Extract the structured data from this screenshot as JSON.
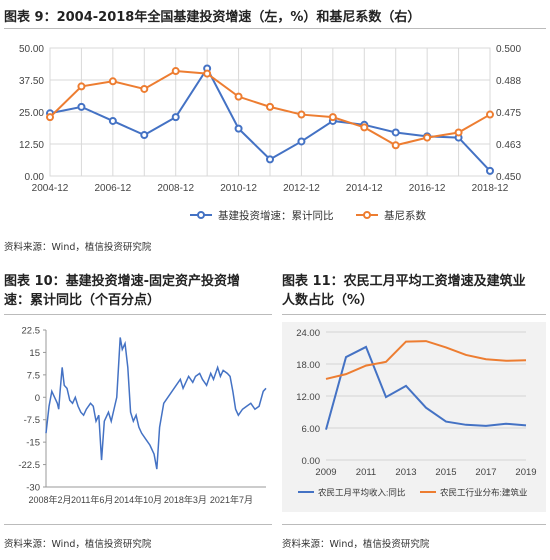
{
  "figures": {
    "fig9": {
      "title": "图表 9：2004-2018年全国基建投资增速（左，%）和基尼系数（右）",
      "source": "资料来源：Wind，植信投资研究院"
    },
    "fig10": {
      "title_line1": "图表  10：基建投资增速-固定资产投资增",
      "title_line2": "速：累计同比（个百分点）",
      "source": "资料来源：Wind，植信投资研究院"
    },
    "fig11": {
      "title_line1": "图表  11：农民工月平均工资增速及建筑业",
      "title_line2": "人数占比（%）",
      "source": "资料来源：Wind，植信投资研究院"
    }
  },
  "chart_data": [
    {
      "id": "fig9",
      "type": "line",
      "title": "",
      "xlabel": "",
      "ylabel": "",
      "x_ticks": [
        "2004-12",
        "2006-12",
        "2008-12",
        "2010-12",
        "2012-12",
        "2014-12",
        "2016-12",
        "2018-12"
      ],
      "x": [
        2004,
        2005,
        2006,
        2007,
        2008,
        2009,
        2010,
        2011,
        2012,
        2013,
        2014,
        2015,
        2016,
        2017,
        2018
      ],
      "ylim_left": [
        0,
        50
      ],
      "yticks_left": [
        "0.00",
        "12.50",
        "25.00",
        "37.50",
        "50.00"
      ],
      "ylim_right": [
        0.45,
        0.5
      ],
      "yticks_right": [
        "0.450",
        "0.463",
        "0.475",
        "0.488",
        "0.500"
      ],
      "grid": true,
      "legend_position": "bottom",
      "series": [
        {
          "name": "基建投资增速：累计同比",
          "axis": "left",
          "color": "#4472c4",
          "values": [
            24.5,
            27,
            21.5,
            16,
            23,
            42,
            18.5,
            6.5,
            13.5,
            21.5,
            20,
            17,
            15.5,
            15,
            2
          ]
        },
        {
          "name": "基尼系数",
          "axis": "right",
          "color": "#ed7d31",
          "values": [
            0.473,
            0.485,
            0.487,
            0.484,
            0.491,
            0.49,
            0.481,
            0.477,
            0.474,
            0.473,
            0.469,
            0.462,
            0.465,
            0.467,
            0.474
          ]
        }
      ]
    },
    {
      "id": "fig10",
      "type": "line",
      "title": "",
      "xlabel": "",
      "ylabel": "",
      "ylim": [
        -30,
        22.5
      ],
      "yticks": [
        "22.5",
        "15",
        "7.5",
        "0",
        "-7.5",
        "-15",
        "-22.5",
        "-30"
      ],
      "x_ticks": [
        "2008年2月",
        "2011年6月",
        "2014年10月",
        "2018年3月",
        "2021年7月"
      ],
      "x_tick_pos": [
        2008.08,
        2011.42,
        2014.75,
        2018.17,
        2021.5
      ],
      "xlim": [
        2008.08,
        2024.0
      ],
      "grid": false,
      "series": [
        {
          "name": "",
          "color": "#4472c4",
          "points": [
            [
              2008.08,
              -12
            ],
            [
              2008.3,
              -3
            ],
            [
              2008.5,
              2
            ],
            [
              2008.7,
              0
            ],
            [
              2008.9,
              -2
            ],
            [
              2009.0,
              -4
            ],
            [
              2009.1,
              2
            ],
            [
              2009.25,
              10
            ],
            [
              2009.4,
              4
            ],
            [
              2009.6,
              3
            ],
            [
              2009.8,
              -1
            ],
            [
              2010.0,
              -2
            ],
            [
              2010.2,
              0
            ],
            [
              2010.4,
              -3
            ],
            [
              2010.6,
              -5
            ],
            [
              2010.8,
              -6
            ],
            [
              2011.0,
              -4
            ],
            [
              2011.3,
              -2
            ],
            [
              2011.5,
              -3
            ],
            [
              2011.7,
              -8
            ],
            [
              2011.9,
              -6
            ],
            [
              2012.1,
              -21
            ],
            [
              2012.3,
              -8
            ],
            [
              2012.6,
              -5
            ],
            [
              2012.8,
              -8
            ],
            [
              2013.0,
              -4
            ],
            [
              2013.2,
              0
            ],
            [
              2013.45,
              20
            ],
            [
              2013.6,
              16
            ],
            [
              2013.8,
              18
            ],
            [
              2014.0,
              10
            ],
            [
              2014.2,
              -5
            ],
            [
              2014.4,
              -8
            ],
            [
              2014.6,
              -6
            ],
            [
              2014.8,
              -10
            ],
            [
              2015.0,
              -12
            ],
            [
              2015.3,
              -14
            ],
            [
              2015.6,
              -16
            ],
            [
              2015.9,
              -19
            ],
            [
              2016.1,
              -24
            ],
            [
              2016.3,
              -10
            ],
            [
              2016.6,
              -2
            ],
            [
              2016.9,
              0
            ],
            [
              2017.2,
              2
            ],
            [
              2017.5,
              4
            ],
            [
              2017.8,
              6
            ],
            [
              2018.0,
              3
            ],
            [
              2018.2,
              5
            ],
            [
              2018.4,
              7
            ],
            [
              2018.7,
              5
            ],
            [
              2018.9,
              7
            ],
            [
              2019.2,
              8
            ],
            [
              2019.4,
              6
            ],
            [
              2019.7,
              4
            ],
            [
              2020.0,
              8
            ],
            [
              2020.2,
              6
            ],
            [
              2020.5,
              10
            ],
            [
              2020.7,
              7
            ],
            [
              2020.9,
              9
            ],
            [
              2021.2,
              8
            ],
            [
              2021.4,
              7
            ],
            [
              2021.6,
              2
            ],
            [
              2021.8,
              -4
            ],
            [
              2022.0,
              -6
            ],
            [
              2022.3,
              -4
            ],
            [
              2022.6,
              -3
            ],
            [
              2022.9,
              -2
            ],
            [
              2023.2,
              -4
            ],
            [
              2023.5,
              -3
            ],
            [
              2023.8,
              2
            ],
            [
              2024.0,
              3
            ]
          ]
        }
      ]
    },
    {
      "id": "fig11",
      "type": "line",
      "title": "",
      "xlabel": "",
      "ylabel": "",
      "x": [
        2009,
        2010,
        2011,
        2012,
        2013,
        2014,
        2015,
        2016,
        2017,
        2018,
        2019
      ],
      "x_ticks": [
        "2009",
        "2011",
        "2013",
        "2015",
        "2017",
        "2019"
      ],
      "ylim": [
        0,
        24
      ],
      "yticks": [
        "0.00",
        "6.00",
        "12.00",
        "18.00",
        "24.00"
      ],
      "grid": true,
      "legend_position": "bottom",
      "series": [
        {
          "name": "农民工月平均收入:同比",
          "color": "#4472c4",
          "values": [
            5.7,
            19.3,
            21.2,
            11.8,
            13.9,
            9.8,
            7.2,
            6.6,
            6.4,
            6.8,
            6.5
          ]
        },
        {
          "name": "农民工行业分布:建筑业",
          "color": "#ed7d31",
          "values": [
            15.2,
            16.1,
            17.7,
            18.4,
            22.2,
            22.3,
            21.1,
            19.7,
            18.9,
            18.6,
            18.7
          ]
        }
      ]
    }
  ]
}
